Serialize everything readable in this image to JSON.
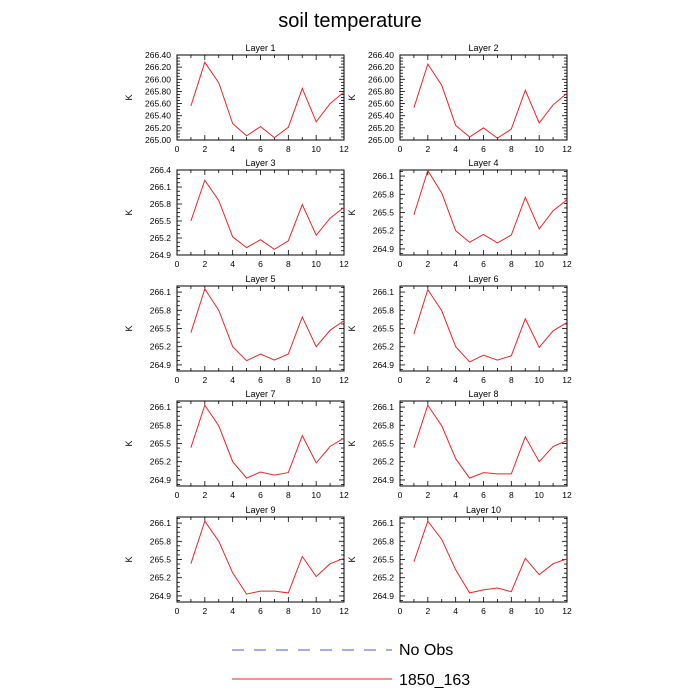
{
  "title": "soil temperature",
  "legend": [
    {
      "label": "No Obs",
      "color": "#4a5bd0",
      "style": "dashed"
    },
    {
      "label": "1850_163",
      "color": "#e8262a",
      "style": "solid"
    }
  ],
  "chart_data": [
    {
      "type": "line",
      "title": "Layer 1",
      "xlabel": "",
      "ylabel": "K",
      "xlim": [
        0,
        12
      ],
      "ylim": [
        265.0,
        266.4
      ],
      "xticks": [
        0,
        2,
        4,
        6,
        8,
        10,
        12
      ],
      "yticks": [
        "265.00",
        "265.20",
        "265.40",
        "265.60",
        "265.80",
        "266.00",
        "266.20",
        "266.40"
      ],
      "series": [
        {
          "name": "1850_163",
          "x": [
            1,
            2,
            3,
            4,
            5,
            6,
            7,
            8,
            9,
            10,
            11,
            12
          ],
          "values": [
            265.56,
            266.28,
            265.94,
            265.27,
            265.07,
            265.22,
            265.04,
            265.21,
            265.85,
            265.3,
            265.6,
            265.79
          ]
        }
      ]
    },
    {
      "type": "line",
      "title": "Layer 2",
      "xlabel": "",
      "ylabel": "K",
      "xlim": [
        0,
        12
      ],
      "ylim": [
        265.0,
        266.4
      ],
      "xticks": [
        0,
        2,
        4,
        6,
        8,
        10,
        12
      ],
      "yticks": [
        "265.00",
        "265.20",
        "265.40",
        "265.60",
        "265.80",
        "266.00",
        "266.20",
        "266.40"
      ],
      "series": [
        {
          "name": "1850_163",
          "x": [
            1,
            2,
            3,
            4,
            5,
            6,
            7,
            8,
            9,
            10,
            11,
            12
          ],
          "values": [
            265.53,
            266.25,
            265.9,
            265.24,
            265.05,
            265.2,
            265.03,
            265.18,
            265.82,
            265.28,
            265.58,
            265.77
          ]
        }
      ]
    },
    {
      "type": "line",
      "title": "Layer 3",
      "xlabel": "",
      "ylabel": "K",
      "xlim": [
        0,
        12
      ],
      "ylim": [
        264.9,
        266.4
      ],
      "xticks": [
        0,
        2,
        4,
        6,
        8,
        10,
        12
      ],
      "yticks": [
        "264.9",
        "265.2",
        "265.5",
        "265.8",
        "266.1",
        "266.4"
      ],
      "series": [
        {
          "name": "1850_163",
          "x": [
            1,
            2,
            3,
            4,
            5,
            6,
            7,
            8,
            9,
            10,
            11,
            12
          ],
          "values": [
            265.5,
            266.22,
            265.86,
            265.22,
            265.03,
            265.17,
            265.0,
            265.15,
            265.79,
            265.25,
            265.55,
            265.74
          ]
        }
      ]
    },
    {
      "type": "line",
      "title": "Layer 4",
      "xlabel": "",
      "ylabel": "K",
      "xlim": [
        0,
        12
      ],
      "ylim": [
        264.8,
        266.2
      ],
      "xticks": [
        0,
        2,
        4,
        6,
        8,
        10,
        12
      ],
      "yticks": [
        "264.9",
        "265.2",
        "265.5",
        "265.8",
        "266.1"
      ],
      "series": [
        {
          "name": "1850_163",
          "x": [
            1,
            2,
            3,
            4,
            5,
            6,
            7,
            8,
            9,
            10,
            11,
            12
          ],
          "values": [
            265.46,
            266.19,
            265.82,
            265.2,
            265.01,
            265.14,
            265.0,
            265.13,
            265.75,
            265.23,
            265.53,
            265.71
          ]
        }
      ]
    },
    {
      "type": "line",
      "title": "Layer 5",
      "xlabel": "",
      "ylabel": "K",
      "xlim": [
        0,
        12
      ],
      "ylim": [
        264.8,
        266.2
      ],
      "xticks": [
        0,
        2,
        4,
        6,
        8,
        10,
        12
      ],
      "yticks": [
        "264.9",
        "265.2",
        "265.5",
        "265.8",
        "266.1"
      ],
      "series": [
        {
          "name": "1850_163",
          "x": [
            1,
            2,
            3,
            4,
            5,
            6,
            7,
            8,
            9,
            10,
            11,
            12
          ],
          "values": [
            265.43,
            266.15,
            265.8,
            265.2,
            264.97,
            265.08,
            264.98,
            265.08,
            265.69,
            265.2,
            265.47,
            265.63
          ]
        }
      ]
    },
    {
      "type": "line",
      "title": "Layer 6",
      "xlabel": "",
      "ylabel": "K",
      "xlim": [
        0,
        12
      ],
      "ylim": [
        264.8,
        266.2
      ],
      "xticks": [
        0,
        2,
        4,
        6,
        8,
        10,
        12
      ],
      "yticks": [
        "264.9",
        "265.2",
        "265.5",
        "265.8",
        "266.1"
      ],
      "series": [
        {
          "name": "1850_163",
          "x": [
            1,
            2,
            3,
            4,
            5,
            6,
            7,
            8,
            9,
            10,
            11,
            12
          ],
          "values": [
            265.41,
            266.14,
            265.79,
            265.2,
            264.95,
            265.06,
            264.98,
            265.05,
            265.66,
            265.19,
            265.46,
            265.6
          ]
        }
      ]
    },
    {
      "type": "line",
      "title": "Layer 7",
      "xlabel": "",
      "ylabel": "K",
      "xlim": [
        0,
        12
      ],
      "ylim": [
        264.8,
        266.2
      ],
      "xticks": [
        0,
        2,
        4,
        6,
        8,
        10,
        12
      ],
      "yticks": [
        "264.9",
        "265.2",
        "265.5",
        "265.8",
        "266.1"
      ],
      "series": [
        {
          "name": "1850_163",
          "x": [
            1,
            2,
            3,
            4,
            5,
            6,
            7,
            8,
            9,
            10,
            11,
            12
          ],
          "values": [
            265.43,
            266.13,
            265.79,
            265.2,
            264.93,
            265.03,
            264.98,
            265.02,
            265.63,
            265.18,
            265.45,
            265.59
          ]
        }
      ]
    },
    {
      "type": "line",
      "title": "Layer 8",
      "xlabel": "",
      "ylabel": "K",
      "xlim": [
        0,
        12
      ],
      "ylim": [
        264.8,
        266.2
      ],
      "xticks": [
        0,
        2,
        4,
        6,
        8,
        10,
        12
      ],
      "yticks": [
        "264.9",
        "265.2",
        "265.5",
        "265.8",
        "266.1"
      ],
      "series": [
        {
          "name": "1850_163",
          "x": [
            1,
            2,
            3,
            4,
            5,
            6,
            7,
            8,
            9,
            10,
            11,
            12
          ],
          "values": [
            265.43,
            266.13,
            265.79,
            265.25,
            264.93,
            265.02,
            265.0,
            265.0,
            265.61,
            265.2,
            265.45,
            265.55
          ]
        }
      ]
    },
    {
      "type": "line",
      "title": "Layer 9",
      "xlabel": "",
      "ylabel": "K",
      "xlim": [
        0,
        12
      ],
      "ylim": [
        264.8,
        266.2
      ],
      "xticks": [
        0,
        2,
        4,
        6,
        8,
        10,
        12
      ],
      "yticks": [
        "264.9",
        "265.2",
        "265.5",
        "265.8",
        "266.1"
      ],
      "series": [
        {
          "name": "1850_163",
          "x": [
            1,
            2,
            3,
            4,
            5,
            6,
            7,
            8,
            9,
            10,
            11,
            12
          ],
          "values": [
            265.43,
            266.13,
            265.8,
            265.28,
            264.93,
            264.98,
            264.98,
            264.95,
            265.55,
            265.22,
            265.43,
            265.52
          ]
        }
      ]
    },
    {
      "type": "line",
      "title": "Layer 10",
      "xlabel": "",
      "ylabel": "K",
      "xlim": [
        0,
        12
      ],
      "ylim": [
        264.8,
        266.2
      ],
      "xticks": [
        0,
        2,
        4,
        6,
        8,
        10,
        12
      ],
      "yticks": [
        "264.9",
        "265.2",
        "265.5",
        "265.8",
        "266.1"
      ],
      "series": [
        {
          "name": "1850_163",
          "x": [
            1,
            2,
            3,
            4,
            5,
            6,
            7,
            8,
            9,
            10,
            11,
            12
          ],
          "values": [
            265.46,
            266.13,
            265.83,
            265.33,
            264.95,
            265.0,
            265.03,
            264.97,
            265.52,
            265.25,
            265.43,
            265.51
          ]
        }
      ]
    }
  ]
}
